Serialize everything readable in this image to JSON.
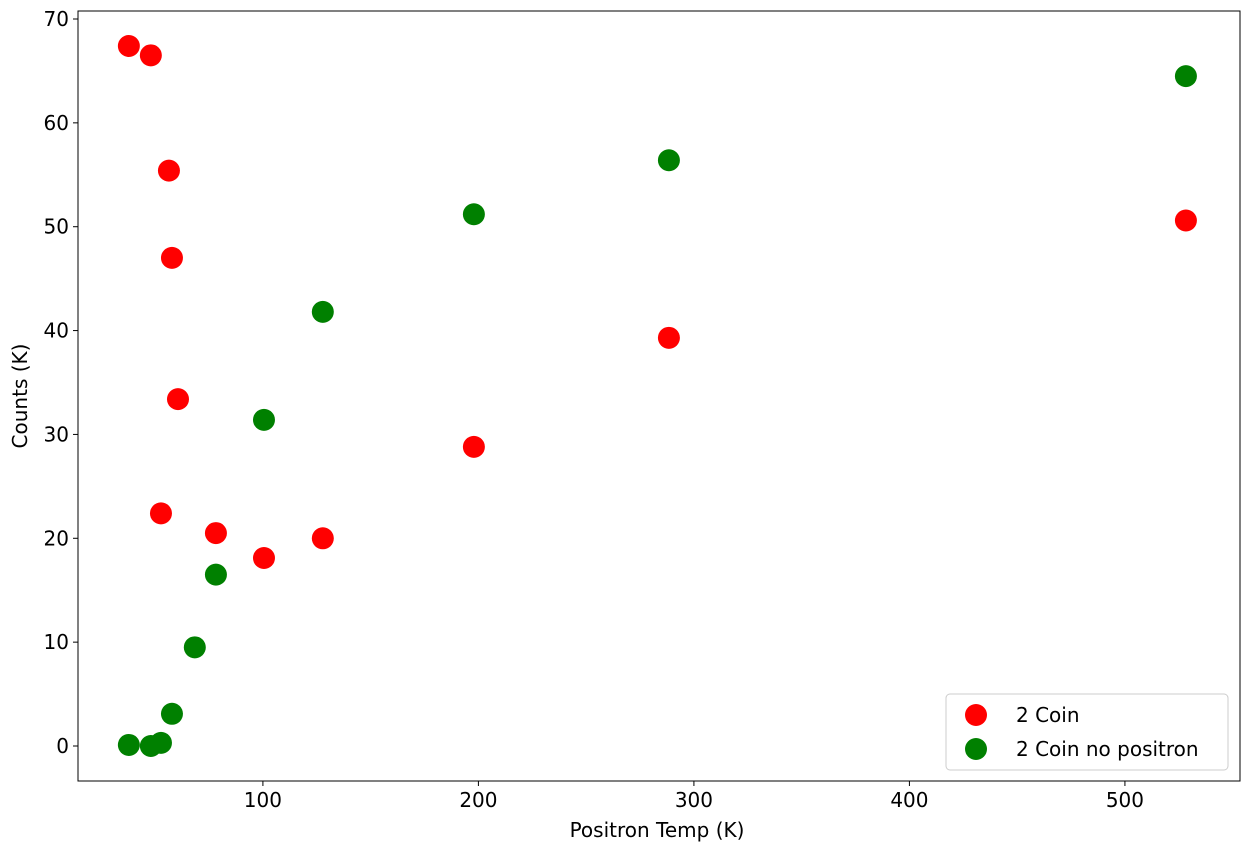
{
  "chart_data": {
    "type": "scatter",
    "xlabel": "Positron Temp (K)",
    "ylabel": "Counts (K)",
    "series": [
      {
        "name": "2 Coin",
        "color": "#ff0000",
        "x": [
          37.8,
          48.0,
          56.4,
          57.8,
          60.6,
          52.7,
          78.2,
          100.5,
          127.8,
          197.9,
          288.4,
          528.3
        ],
        "values": [
          67.4,
          66.5,
          55.4,
          47.0,
          33.4,
          22.4,
          20.5,
          18.1,
          20.0,
          28.8,
          39.3,
          50.6
        ]
      },
      {
        "name": "2 Coin no positron",
        "color": "#008000",
        "x": [
          37.8,
          48.0,
          52.7,
          57.8,
          68.4,
          78.2,
          100.5,
          127.8,
          197.9,
          288.4,
          528.3
        ],
        "values": [
          0.1,
          0.0,
          0.3,
          3.1,
          9.5,
          16.5,
          31.4,
          41.8,
          51.2,
          56.4,
          64.5
        ]
      }
    ],
    "xlim": [
      14.2,
      553.4
    ],
    "xticks": [
      100,
      200,
      300,
      400,
      500
    ],
    "ylim": [
      -3.37,
      70.77
    ],
    "yticks": [
      0,
      10,
      20,
      30,
      40,
      50,
      60,
      70
    ],
    "legend": "lower right"
  }
}
